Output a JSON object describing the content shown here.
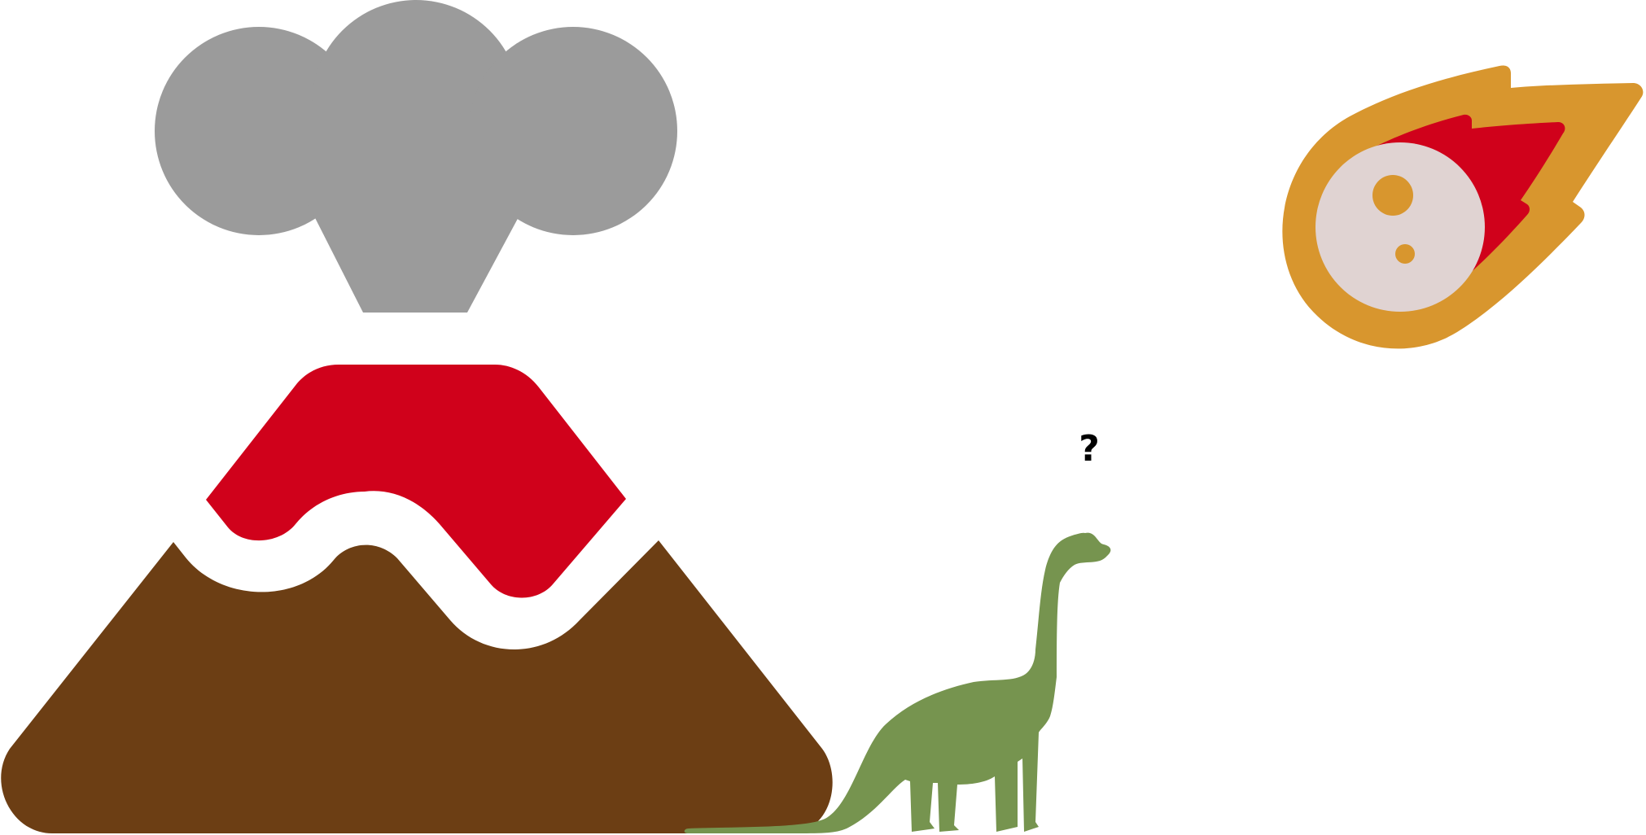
{
  "scene": {
    "background": "#ffffff",
    "colors": {
      "smoke": "#9b9b9b",
      "lava": "#d0011b",
      "mountain": "#6c3e14",
      "dinosaur": "#76944f",
      "meteor_flame": "#d8962e",
      "meteor_inner_flame": "#d0011b",
      "meteor_rock": "#e0d3d2",
      "meteor_crater": "#d8962e",
      "question_mark": "#000000"
    },
    "icons": {
      "volcano": "volcano-icon",
      "smoke_cloud": "smoke-cloud-icon",
      "lava": "lava-icon",
      "mountain": "mountain-icon",
      "dinosaur": "dinosaur-icon",
      "meteor": "meteor-icon"
    },
    "thought_text": "?"
  }
}
